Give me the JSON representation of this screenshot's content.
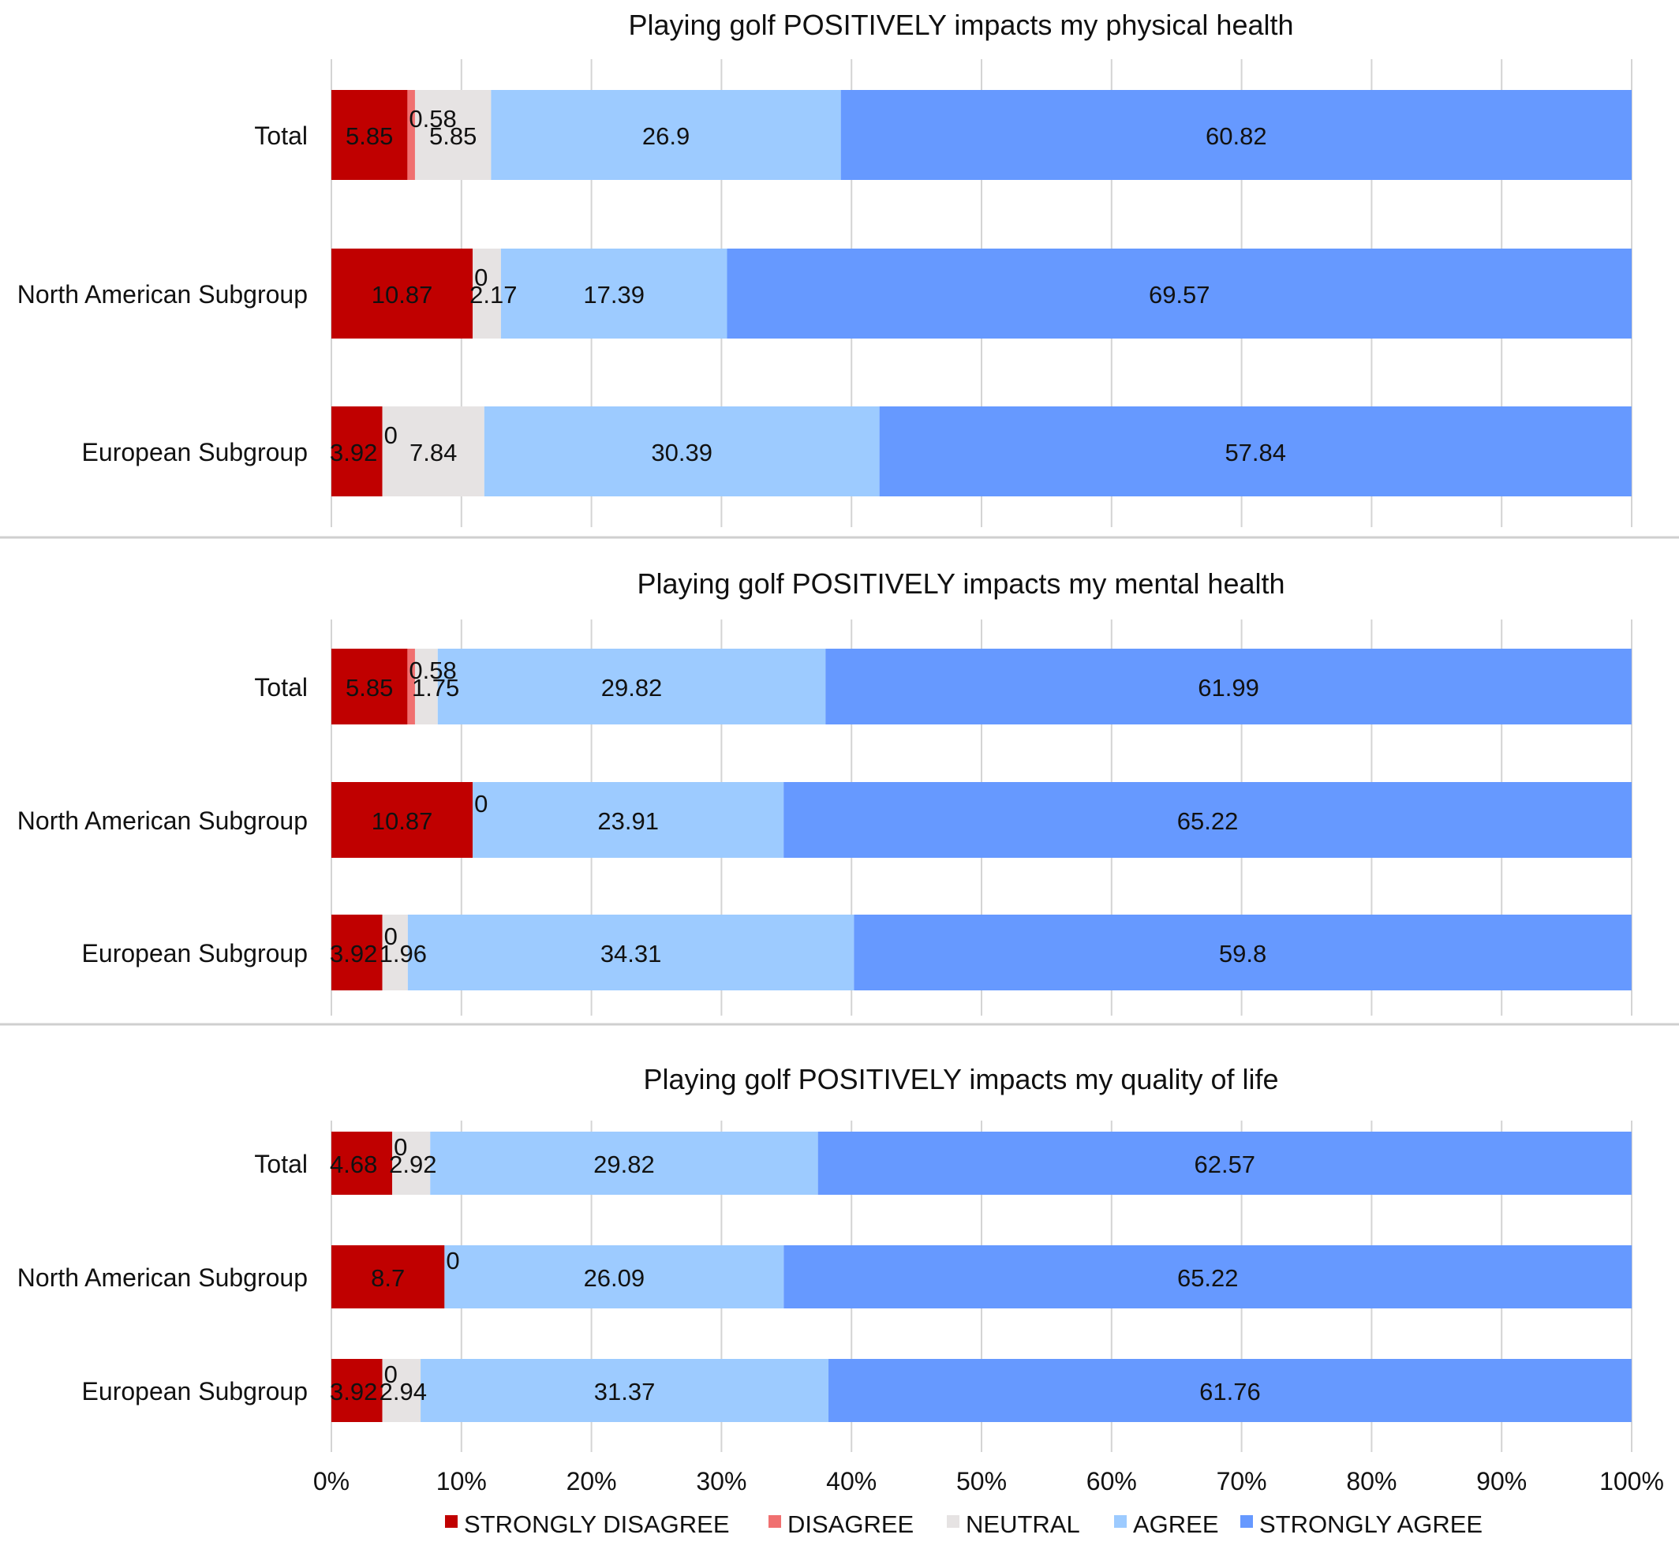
{
  "chart_data": [
    {
      "type": "bar",
      "orientation": "horizontal",
      "stacked": "100%",
      "title": "Playing golf POSITIVELY impacts my physical health",
      "categories": [
        "Total",
        "North American Subgroup",
        "European Subgroup"
      ],
      "series": [
        {
          "name": "STRONGLY DISAGREE",
          "values": [
            5.85,
            10.87,
            3.92
          ],
          "labels": [
            "5.85",
            "10.87",
            "3.92"
          ]
        },
        {
          "name": "DISAGREE",
          "values": [
            0.58,
            0,
            0
          ],
          "labels": [
            "0.58",
            "0",
            "0"
          ]
        },
        {
          "name": "NEUTRAL",
          "values": [
            5.85,
            2.17,
            7.84
          ],
          "labels": [
            "5.85",
            "2.17",
            "7.84"
          ]
        },
        {
          "name": "AGREE",
          "values": [
            26.9,
            17.39,
            30.39
          ],
          "labels": [
            "26.9",
            "17.39",
            "30.39"
          ]
        },
        {
          "name": "STRONGLY AGREE",
          "values": [
            60.82,
            69.57,
            57.84
          ],
          "labels": [
            "60.82",
            "69.57",
            "57.84"
          ]
        }
      ]
    },
    {
      "type": "bar",
      "orientation": "horizontal",
      "stacked": "100%",
      "title": "Playing golf POSITIVELY impacts my mental health",
      "categories": [
        "Total",
        "North American Subgroup",
        "European Subgroup"
      ],
      "series": [
        {
          "name": "STRONGLY DISAGREE",
          "values": [
            5.85,
            10.87,
            3.92
          ],
          "labels": [
            "5.85",
            "10.87",
            "3.92"
          ]
        },
        {
          "name": "DISAGREE",
          "values": [
            0.58,
            0,
            0
          ],
          "labels": [
            "0.58",
            "0",
            "0"
          ]
        },
        {
          "name": "NEUTRAL",
          "values": [
            1.75,
            0,
            1.96
          ],
          "labels": [
            "1.75",
            "",
            "1.96"
          ]
        },
        {
          "name": "AGREE",
          "values": [
            29.82,
            23.91,
            34.31
          ],
          "labels": [
            "29.82",
            "23.91",
            "34.31"
          ]
        },
        {
          "name": "STRONGLY AGREE",
          "values": [
            61.99,
            65.22,
            59.8
          ],
          "labels": [
            "61.99",
            "65.22",
            "59.8"
          ]
        }
      ]
    },
    {
      "type": "bar",
      "orientation": "horizontal",
      "stacked": "100%",
      "title": "Playing golf POSITIVELY impacts my quality of life",
      "categories": [
        "Total",
        "North American Subgroup",
        "European Subgroup"
      ],
      "series": [
        {
          "name": "STRONGLY DISAGREE",
          "values": [
            4.68,
            8.7,
            3.92
          ],
          "labels": [
            "4.68",
            "8.7",
            "3.92"
          ]
        },
        {
          "name": "DISAGREE",
          "values": [
            0,
            0,
            0
          ],
          "labels": [
            "0",
            "0",
            "0"
          ]
        },
        {
          "name": "NEUTRAL",
          "values": [
            2.92,
            0,
            2.94
          ],
          "labels": [
            "2.92",
            "",
            "2.94"
          ]
        },
        {
          "name": "AGREE",
          "values": [
            29.82,
            26.09,
            31.37
          ],
          "labels": [
            "29.82",
            "26.09",
            "31.37"
          ]
        },
        {
          "name": "STRONGLY AGREE",
          "values": [
            62.57,
            65.22,
            61.76
          ],
          "labels": [
            "62.57",
            "65.22",
            "61.76"
          ]
        }
      ]
    }
  ],
  "x_axis": {
    "xlim": [
      0,
      100
    ],
    "ticks": [
      0,
      10,
      20,
      30,
      40,
      50,
      60,
      70,
      80,
      90,
      100
    ],
    "tick_labels": [
      "0%",
      "10%",
      "20%",
      "30%",
      "40%",
      "50%",
      "60%",
      "70%",
      "80%",
      "90%",
      "100%"
    ],
    "grid": true
  },
  "legend": {
    "placement": "bottom",
    "items": [
      {
        "name": "STRONGLY DISAGREE",
        "color": "#c00000"
      },
      {
        "name": "DISAGREE",
        "color": "#f07070"
      },
      {
        "name": "NEUTRAL",
        "color": "#e6e3e3"
      },
      {
        "name": "AGREE",
        "color": "#9dcbff"
      },
      {
        "name": "STRONGLY AGREE",
        "color": "#6699ff"
      }
    ]
  }
}
